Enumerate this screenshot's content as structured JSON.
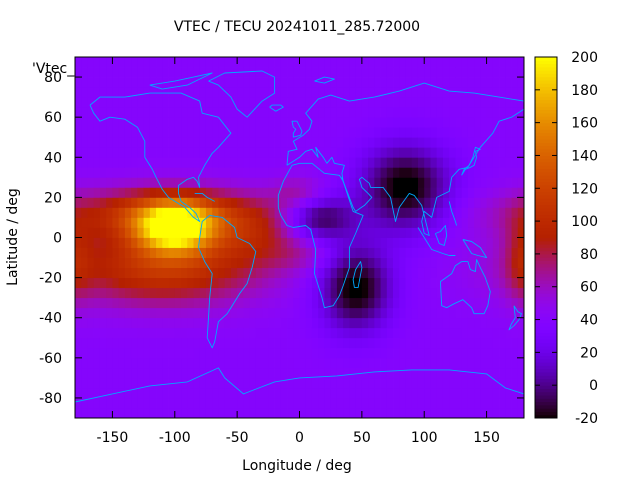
{
  "chart_data": {
    "type": "heatmap",
    "title": "VTEC / TECU 20241011_285.72000",
    "xlabel": "Longitude / deg",
    "ylabel": "Latitude / deg",
    "key_label": "'Vtec_",
    "xlim": [
      -180,
      180
    ],
    "ylim": [
      -90,
      90
    ],
    "xticks": [
      -150,
      -100,
      -50,
      0,
      50,
      100,
      150
    ],
    "yticks": [
      -80,
      -60,
      -40,
      -20,
      0,
      20,
      40,
      60,
      80
    ],
    "colorbar": {
      "min": -20,
      "max": 200,
      "ticks": [
        -20,
        0,
        20,
        40,
        60,
        80,
        100,
        120,
        140,
        160,
        180,
        200
      ],
      "colormap": "gnuplot-pm3d-default"
    },
    "grid": false,
    "background_level_tecu": 40,
    "features": [
      {
        "label": "equatorial anomaly peak, Pacific / South America",
        "lon": -100,
        "lat": 5,
        "vtec": 175,
        "dlon": 22,
        "dlat": 9
      },
      {
        "label": "equatorial anomaly, northern crest",
        "lon": -105,
        "lat": 12,
        "vtec": 110,
        "dlon": 60,
        "dlat": 9
      },
      {
        "label": "equatorial anomaly, southern crest",
        "lon": -110,
        "lat": -15,
        "vtec": 110,
        "dlon": 55,
        "dlat": 13
      },
      {
        "label": "anomaly tail over South Atlantic",
        "lon": -35,
        "lat": 0,
        "vtec": 70,
        "dlon": 25,
        "dlat": 10
      },
      {
        "label": "dusk enhancement, North Africa",
        "lon": 0,
        "lat": 22,
        "vtec": 65,
        "dlon": 15,
        "dlat": 6
      },
      {
        "label": "dusk enhancement, Southern Africa",
        "lon": 5,
        "lat": -8,
        "vtec": 55,
        "dlon": 20,
        "dlat": 6
      },
      {
        "label": "eastern edge enhancement",
        "lon": 180,
        "lat": -10,
        "vtec": 70,
        "dlon": 10,
        "dlat": 15
      },
      {
        "label": "night-side depletion, Asia",
        "lon": 85,
        "lat": 25,
        "vtec": -25,
        "dlon": 25,
        "dlat": 15
      },
      {
        "label": "night-side depletion, Indian Ocean",
        "lon": 45,
        "lat": -25,
        "vtec": -25,
        "dlon": 20,
        "dlat": 15
      },
      {
        "label": "night-side depletion, Africa",
        "lon": 15,
        "lat": 10,
        "vtec": -15,
        "dlon": 20,
        "dlat": 8
      }
    ]
  }
}
